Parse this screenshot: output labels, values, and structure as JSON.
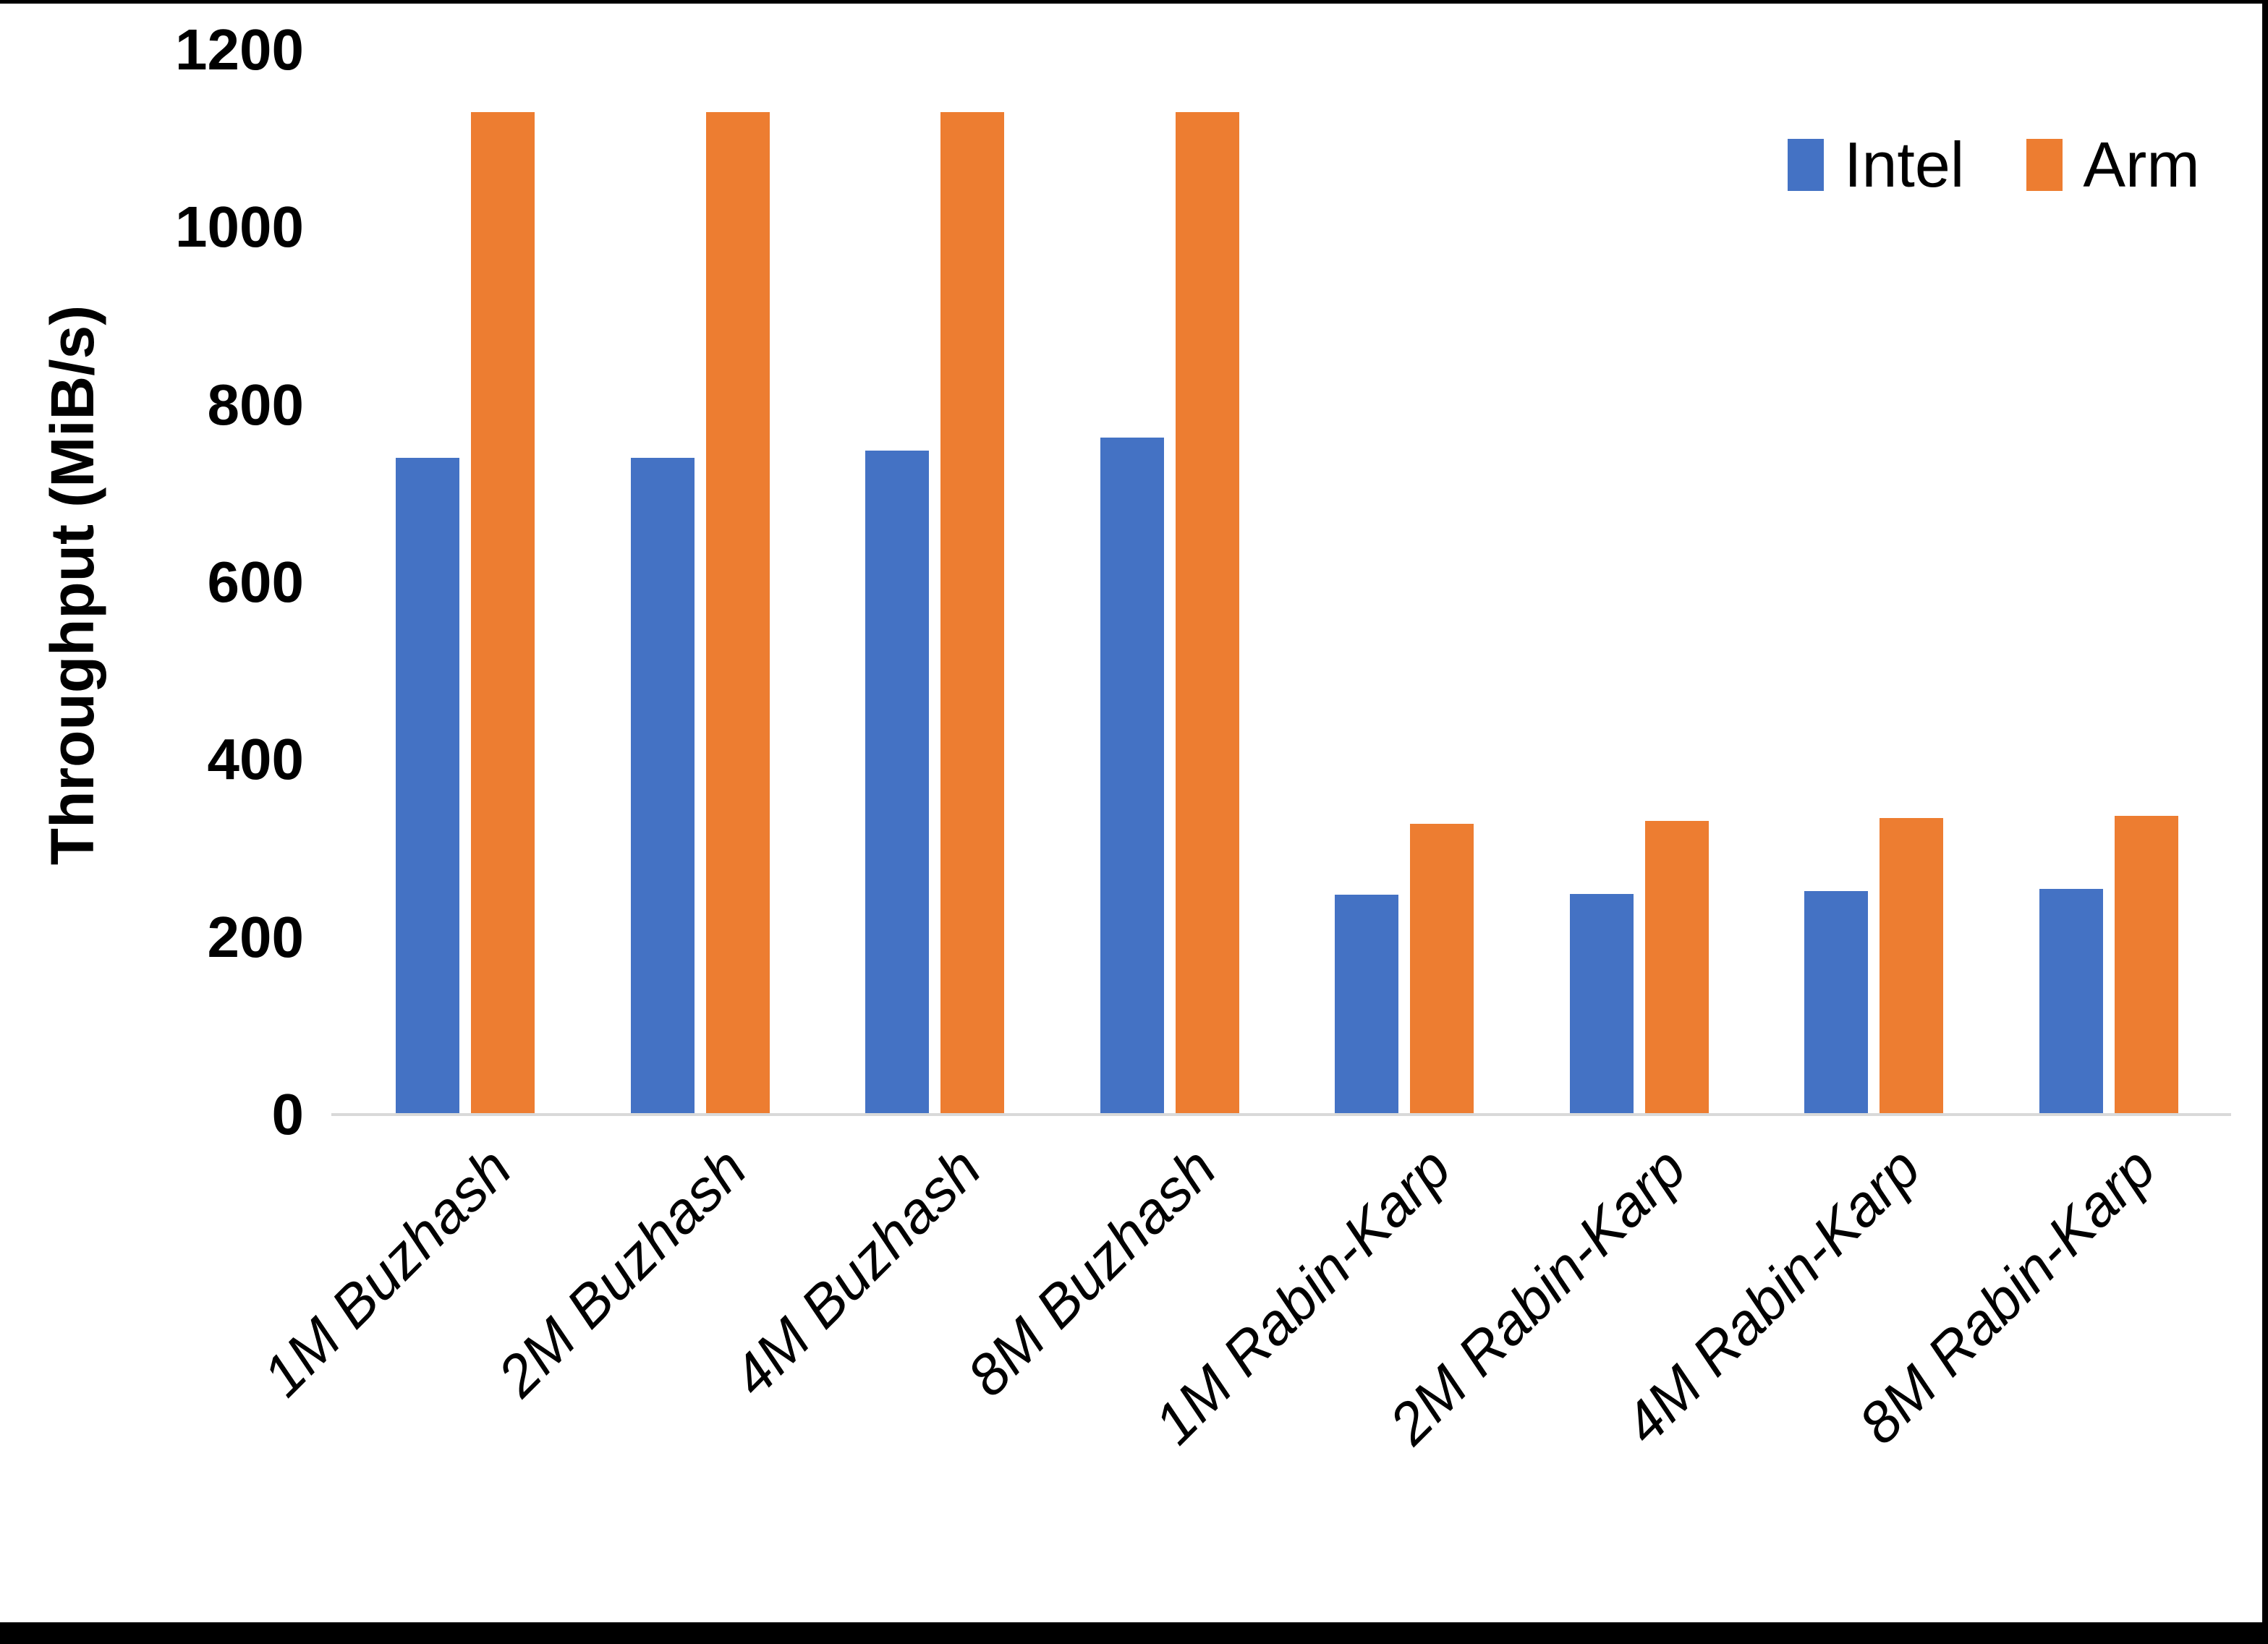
{
  "chart_data": {
    "type": "bar",
    "title": "",
    "xlabel": "",
    "ylabel": "Throughput (MiB/s)",
    "ylim": [
      0,
      1200
    ],
    "ytick_step": 200,
    "ytick_labels": [
      "0",
      "200",
      "400",
      "600",
      "800",
      "1000",
      "1200"
    ],
    "grid": false,
    "legend_position": "top-right",
    "categories": [
      "1M Buzhash",
      "2M Buzhash",
      "4M Buzhash",
      "8M Buzhash",
      "1M Rabin-Karp",
      "2M Rabin-Karp",
      "4M Rabin-Karp",
      "8M Rabin-Karp"
    ],
    "series": [
      {
        "name": "Intel",
        "color": "#4472C4",
        "values": [
          740,
          740,
          748,
          763,
          248,
          249,
          252,
          254
        ]
      },
      {
        "name": "Arm",
        "color": "#ED7D31",
        "values": [
          1130,
          1130,
          1130,
          1130,
          328,
          331,
          334,
          337
        ]
      }
    ],
    "colors": {
      "axis_line": "#D9D9D9",
      "text": "#000000",
      "page_border": "#000000"
    }
  }
}
